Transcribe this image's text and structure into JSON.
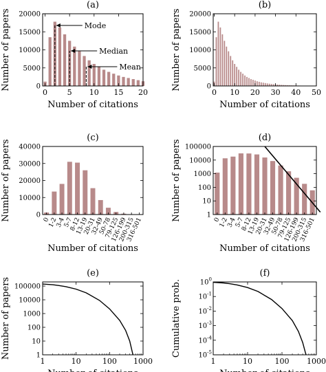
{
  "colors": {
    "bar": "#b88a8a",
    "axis": "#000000",
    "curve": "#000000"
  },
  "chart_data": [
    {
      "panel": "(a)",
      "type": "bar",
      "xlabel": "Number of citations",
      "ylabel": "Number of papers",
      "xlim": [
        -0.5,
        20
      ],
      "ylim": [
        0,
        20000
      ],
      "xticks": [
        "0",
        "5",
        "10",
        "15",
        "20"
      ],
      "xtick_values": [
        0,
        5,
        10,
        15,
        20
      ],
      "yticks": [
        "0",
        "5000",
        "10000",
        "15000",
        "20000"
      ],
      "ytick_values": [
        0,
        5000,
        10000,
        15000,
        20000
      ],
      "x": [
        0,
        1,
        2,
        3,
        4,
        5,
        6,
        7,
        8,
        9,
        10,
        11,
        12,
        13,
        14,
        15,
        16,
        17,
        18,
        19,
        20
      ],
      "values": [
        1200,
        13500,
        17800,
        16200,
        14300,
        12500,
        10900,
        9600,
        8300,
        7100,
        6100,
        5300,
        4500,
        3900,
        3400,
        2900,
        2500,
        2200,
        1900,
        1600,
        1300
      ],
      "annotations": [
        {
          "label": "Mode",
          "x": 2,
          "value": 17800
        },
        {
          "label": "Median",
          "x": 5,
          "value": 10000
        },
        {
          "label": "Mean",
          "x": 8.4,
          "value": 5800
        }
      ]
    },
    {
      "panel": "(b)",
      "type": "bar",
      "xlabel": "Number of citations",
      "ylabel": "Number of papers",
      "xlim": [
        -0.5,
        50
      ],
      "ylim": [
        0,
        20000
      ],
      "xticks": [
        "0",
        "10",
        "20",
        "30",
        "40",
        "50"
      ],
      "xtick_values": [
        0,
        10,
        20,
        30,
        40,
        50
      ],
      "yticks": [
        "0",
        "5000",
        "10000",
        "15000",
        "20000"
      ],
      "ytick_values": [
        0,
        5000,
        10000,
        15000,
        20000
      ],
      "x": [
        0,
        1,
        2,
        3,
        4,
        5,
        6,
        7,
        8,
        9,
        10,
        11,
        12,
        13,
        14,
        15,
        16,
        17,
        18,
        19,
        20,
        21,
        22,
        23,
        24,
        25,
        26,
        27,
        28,
        29,
        30,
        31,
        32,
        33,
        34,
        35,
        36,
        37,
        38,
        39,
        40,
        41,
        42,
        43,
        44,
        45,
        46,
        47,
        48,
        49,
        50
      ],
      "values": [
        1200,
        13500,
        17800,
        16200,
        14300,
        12500,
        10900,
        9600,
        8300,
        7100,
        6100,
        5300,
        4500,
        3900,
        3400,
        2900,
        2500,
        2200,
        1900,
        1700,
        1500,
        1300,
        1150,
        1000,
        900,
        800,
        700,
        620,
        550,
        490,
        430,
        380,
        340,
        300,
        270,
        240,
        215,
        190,
        170,
        150,
        135,
        120,
        105,
        95,
        85,
        75,
        68,
        60,
        54,
        48,
        42
      ]
    },
    {
      "panel": "(c)",
      "type": "bar",
      "xlabel": "Number of citations",
      "ylabel": "Number of papers",
      "ylim": [
        0,
        40000
      ],
      "yticks": [
        "0",
        "10000",
        "20000",
        "30000",
        "40000"
      ],
      "ytick_values": [
        0,
        10000,
        20000,
        30000,
        40000
      ],
      "categories": [
        "0",
        "1-2",
        "3-4",
        "5-7",
        "8-12",
        "13-19",
        "20-31",
        "32-49",
        "50-78",
        "79-125",
        "126-199",
        "200-315",
        "316-501"
      ],
      "values": [
        1200,
        13500,
        18000,
        31000,
        30500,
        26000,
        15500,
        8500,
        4000,
        1500,
        500,
        180,
        60
      ]
    },
    {
      "panel": "(d)",
      "type": "bar",
      "yscale": "log",
      "xlabel": "Number of citations",
      "ylabel": "Number of papers",
      "ylim": [
        1,
        100000
      ],
      "yticks": [
        "1",
        "10",
        "100",
        "1000",
        "10000",
        "100000"
      ],
      "ytick_values": [
        1,
        10,
        100,
        1000,
        10000,
        100000
      ],
      "categories": [
        "0",
        "1-2",
        "3-4",
        "5-7",
        "8-12",
        "13-19",
        "20-31",
        "32-49",
        "50-78",
        "79-125",
        "126-199",
        "200-315",
        "316-501"
      ],
      "values": [
        1200,
        13500,
        18000,
        31000,
        30500,
        26000,
        15500,
        8500,
        4000,
        1500,
        500,
        180,
        60
      ],
      "fit_line": {
        "from": [
          6,
          100000
        ],
        "to": [
          13,
          1.5
        ]
      }
    },
    {
      "panel": "(e)",
      "type": "line",
      "xscale": "log",
      "yscale": "log",
      "xlabel": "Number of citations",
      "ylabel": "Number of papers",
      "xlim": [
        1,
        1000
      ],
      "ylim": [
        1,
        200000
      ],
      "xticks": [
        "1",
        "10",
        "100",
        "1000"
      ],
      "xtick_values": [
        1,
        10,
        100,
        1000
      ],
      "yticks": [
        "1",
        "10",
        "100",
        "1000",
        "10000",
        "100000"
      ],
      "ytick_values": [
        1,
        10,
        100,
        1000,
        10000,
        100000
      ],
      "x": [
        1,
        2,
        3,
        5,
        10,
        20,
        50,
        100,
        200,
        300,
        400,
        500
      ],
      "y": [
        140000,
        125000,
        110000,
        90000,
        60000,
        32000,
        9000,
        2200,
        320,
        60,
        10,
        1
      ]
    },
    {
      "panel": "(f)",
      "type": "line",
      "xscale": "log",
      "yscale": "log",
      "xlabel": "Number of citations",
      "ylabel": "Cumulative prob.",
      "xlim": [
        1,
        1000
      ],
      "ylim": [
        1e-05,
        1
      ],
      "xticks": [
        "1",
        "10",
        "100",
        "1000"
      ],
      "xtick_values": [
        1,
        10,
        100,
        1000
      ],
      "yticks": [
        "10",
        "10",
        "10",
        "10",
        "10",
        "10"
      ],
      "ytick_exponents": [
        "0",
        "-1",
        "-2",
        "-3",
        "-4",
        "-5"
      ],
      "ytick_values": [
        1,
        0.1,
        0.01,
        0.001,
        0.0001,
        1e-05
      ],
      "x": [
        1,
        2,
        3,
        5,
        10,
        20,
        50,
        100,
        200,
        300,
        400,
        500
      ],
      "y": [
        0.95,
        0.85,
        0.75,
        0.62,
        0.41,
        0.22,
        0.062,
        0.015,
        0.0022,
        0.0004,
        7e-05,
        1e-05
      ]
    }
  ]
}
